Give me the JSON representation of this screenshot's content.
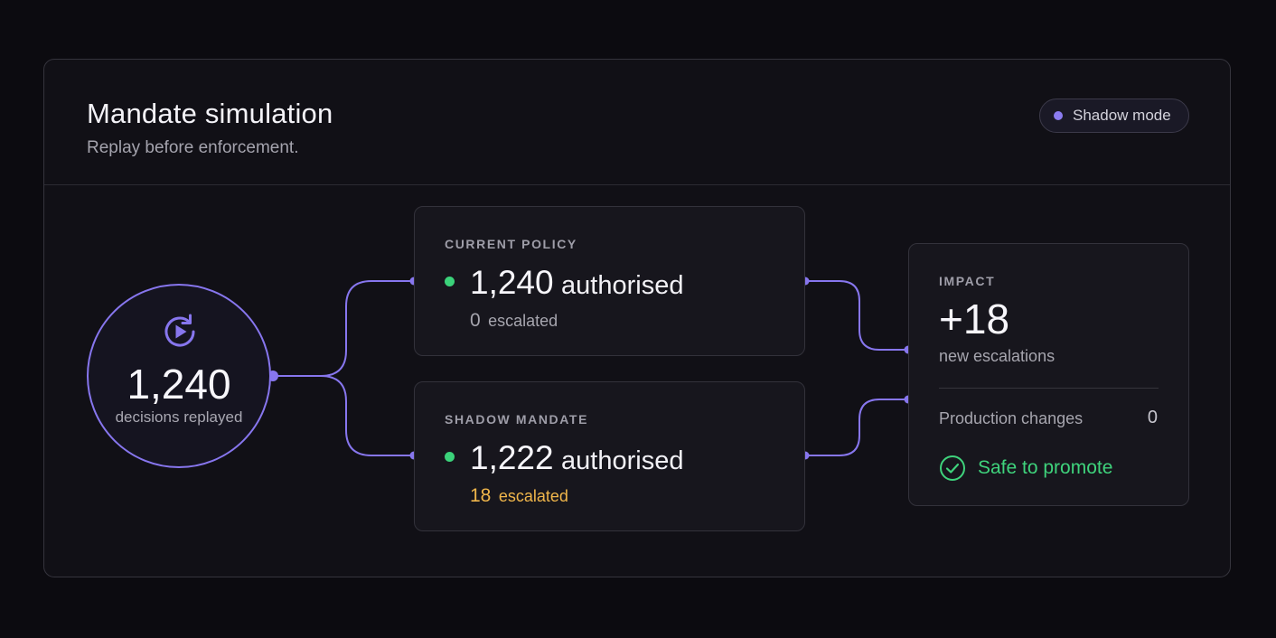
{
  "header": {
    "title": "Mandate simulation",
    "subtitle": "Replay before enforcement.",
    "badge_label": "Shadow mode"
  },
  "source": {
    "icon": "replay-play-icon",
    "value": "1,240",
    "label": "decisions replayed"
  },
  "current_policy": {
    "kicker": "CURRENT POLICY",
    "authorised_value": "1,240",
    "authorised_label": "authorised",
    "escalated_value": "0",
    "escalated_label": "escalated"
  },
  "shadow_mandate": {
    "kicker": "SHADOW MANDATE",
    "authorised_value": "1,222",
    "authorised_label": "authorised",
    "escalated_value": "18",
    "escalated_label": "escalated"
  },
  "impact": {
    "kicker": "IMPACT",
    "value": "+18",
    "label": "new escalations",
    "production_label": "Production changes",
    "production_value": "0",
    "safe_label": "Safe to promote"
  },
  "colors": {
    "background": "#0c0b10",
    "panel": "#111016",
    "accent": "#8776ee",
    "success": "#3fd37c",
    "warning": "#f0b64b"
  }
}
